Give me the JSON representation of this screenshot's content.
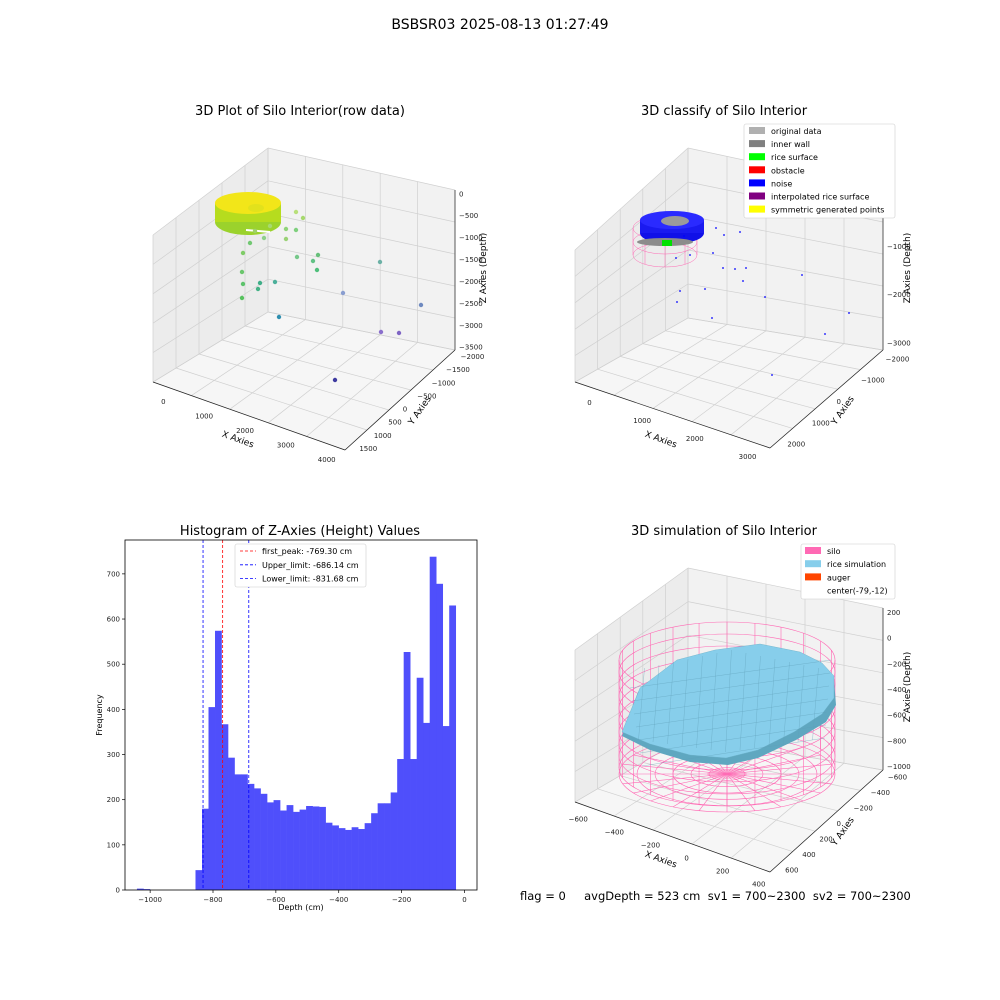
{
  "suptitle": "BSBSR03 2025-08-13 01:27:49",
  "footer": "flag = 0     avgDepth = 523 cm  sv1 = 700~2300  sv2 = 700~2300",
  "colors": {
    "hist_bar": "#4f4ffb",
    "first_peak_line": "#ff0000",
    "limit_line": "#0000ff",
    "silo": "#ff69b4",
    "rice": "#87ceeb",
    "auger": "#ff4500",
    "gray_pane": "#f2f2f2"
  },
  "chart_data": [
    {
      "type": "scatter",
      "title": "3D Plot of Silo Interior(row data)",
      "xlabel": "X Axies",
      "ylabel": "Y Axies",
      "zlabel": "Z Axies (Depth)",
      "xticks": [
        "0",
        "1000",
        "2000",
        "3000",
        "4000"
      ],
      "yticks": [
        "−2000",
        "−1500",
        "−1000",
        "−500",
        "0",
        "500",
        "1000",
        "1500"
      ],
      "zticks": [
        "0",
        "−500",
        "−1000",
        "−1500",
        "−2000",
        "−2500",
        "−3000",
        "−3500"
      ]
    },
    {
      "type": "scatter",
      "title": "3D classify of Silo Interior",
      "xlabel": "X Axies",
      "ylabel": "Y Axies",
      "zlabel": "Z Axies (Depth)",
      "xticks": [
        "0",
        "1000",
        "2000",
        "3000"
      ],
      "yticks": [
        "−2000",
        "−1000",
        "0",
        "1000",
        "2000"
      ],
      "zticks": [
        "0",
        "−1000",
        "−2000",
        "−3000"
      ],
      "legend_position": "top-right",
      "legend": [
        {
          "label": "original data",
          "color": "#b0b0b0"
        },
        {
          "label": "inner wall",
          "color": "#808080"
        },
        {
          "label": "rice surface",
          "color": "#00ff00"
        },
        {
          "label": "obstacle",
          "color": "#ff0000"
        },
        {
          "label": "noise",
          "color": "#0000ff"
        },
        {
          "label": "interpolated rice surface",
          "color": "#800080"
        },
        {
          "label": "symmetric generated points",
          "color": "#ffff00"
        }
      ]
    },
    {
      "type": "bar",
      "title": "Histogram of Z-Axies (Height) Values",
      "xlabel": "Depth (cm)",
      "ylabel": "Frequency",
      "xlim": [
        -1080,
        40
      ],
      "ylim": [
        0,
        775
      ],
      "xticks": [
        -1000,
        -800,
        -600,
        -400,
        -200,
        0
      ],
      "yticks": [
        0,
        100,
        200,
        300,
        400,
        500,
        600,
        700
      ],
      "bin_start": -1042,
      "bin_width": 20.7,
      "values": [
        3,
        2,
        0,
        0,
        0,
        0,
        0,
        0,
        0,
        44,
        180,
        405,
        574,
        367,
        293,
        256,
        256,
        235,
        225,
        213,
        194,
        199,
        176,
        188,
        173,
        178,
        186,
        185,
        184,
        149,
        143,
        137,
        133,
        139,
        135,
        148,
        170,
        192,
        192,
        216,
        290,
        527,
        290,
        470,
        370,
        738,
        678,
        363,
        630
      ],
      "vlines": [
        {
          "label": "first_peak: -769.30 cm",
          "x": -769.3,
          "color": "#ff0000"
        },
        {
          "label": "Upper_limit: -686.14 cm",
          "x": -686.14,
          "color": "#0000ff"
        },
        {
          "label": "Lower_limit: -831.68 cm",
          "x": -831.68,
          "color": "#0000ff"
        }
      ],
      "legend_position": "top-center"
    },
    {
      "type": "area",
      "title": "3D simulation of Silo Interior",
      "xlabel": "X Axies",
      "ylabel": "Y Axies",
      "zlabel": "Z Axies (Depth)",
      "xticks": [
        "−600",
        "−400",
        "−200",
        "0",
        "200",
        "400"
      ],
      "yticks": [
        "−600",
        "−400",
        "−200",
        "0",
        "200",
        "400",
        "600"
      ],
      "zticks": [
        "200",
        "0",
        "−200",
        "−400",
        "−600",
        "−800",
        "−1000"
      ],
      "legend_position": "top-right",
      "legend": [
        {
          "label": "silo",
          "color": "#ff69b4"
        },
        {
          "label": "rice simulation",
          "color": "#87ceeb"
        },
        {
          "label": "auger",
          "color": "#ff4500"
        },
        {
          "label": "center(-79,-12)",
          "color": ""
        }
      ]
    }
  ]
}
